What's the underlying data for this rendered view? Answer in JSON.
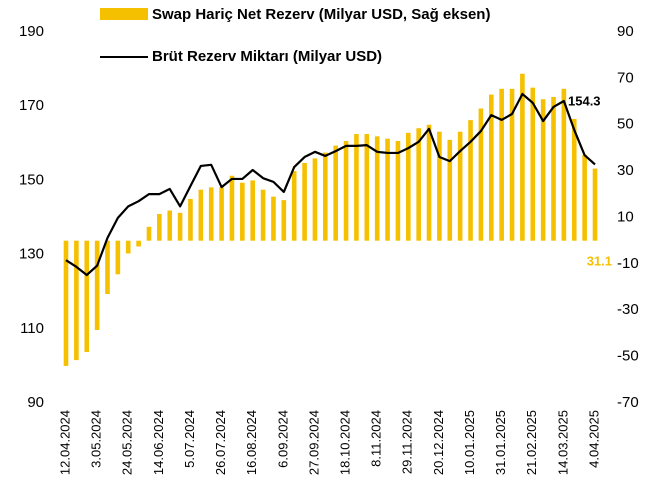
{
  "chart_data": {
    "type": "bar_line",
    "categories": [
      "12.04.2024",
      null,
      null,
      "3.05.2024",
      null,
      null,
      "24.05.2024",
      null,
      null,
      "14.06.2024",
      null,
      null,
      "5.07.2024",
      null,
      null,
      "26.07.2024",
      null,
      null,
      "16.08.2024",
      null,
      null,
      "6.09.2024",
      null,
      null,
      "27.09.2024",
      null,
      null,
      "18.10.2024",
      null,
      null,
      "8.11.2024",
      null,
      null,
      "29.11.2024",
      null,
      null,
      "20.12.2024",
      null,
      null,
      "10.01.2025",
      null,
      null,
      "31.01.2025",
      null,
      null,
      "21.02.2025",
      null,
      null,
      "14.03.2025",
      null,
      null,
      "4.04.2025"
    ],
    "series": [
      {
        "name": "Swap Hariç Net Rezerv (Milyar USD, Sağ eksen)",
        "type": "bar",
        "axis": "y2",
        "color": "#f5c000",
        "values": [
          -54,
          -51.5,
          -48,
          -38.5,
          -23,
          -14.5,
          -5.5,
          -2.5,
          6,
          11.5,
          13,
          12,
          18,
          22,
          23,
          23,
          28,
          25,
          26,
          22,
          19,
          17.5,
          30,
          33.5,
          35.5,
          38,
          41,
          43,
          46,
          46,
          45,
          44,
          43,
          46.5,
          48.5,
          50,
          47,
          43.5,
          47,
          52,
          57,
          63,
          65.5,
          65.5,
          72,
          66,
          61,
          62,
          65.5,
          52.5,
          37,
          31.1
        ]
      },
      {
        "name": "Brüt Rezerv Miktarı (Milyar USD)",
        "type": "line",
        "axis": "y",
        "color": "#000000",
        "values": [
          128.5,
          126.7,
          124.5,
          127,
          134.5,
          139.9,
          143,
          144.4,
          146.3,
          146.3,
          147.7,
          143,
          148.5,
          153.9,
          154.2,
          148.2,
          150.4,
          150.4,
          152.8,
          150.6,
          149.6,
          146.9,
          153.6,
          156.3,
          157.7,
          156.6,
          157.9,
          159.3,
          159.3,
          159.5,
          157.7,
          157.4,
          157.4,
          158.7,
          160.4,
          163.9,
          156.3,
          155.2,
          157.9,
          160.4,
          163.3,
          167.6,
          166.3,
          167.9,
          173.3,
          170.9,
          166,
          169.8,
          171.4,
          163.6,
          156.8,
          154.3
        ]
      }
    ],
    "data_labels": "last",
    "ylim": [
      90,
      190
    ],
    "yticks": [
      90,
      110,
      130,
      150,
      170,
      190
    ],
    "y2lim": [
      -70,
      90
    ],
    "y2ticks": [
      -70,
      -50,
      -30,
      -10,
      10,
      30,
      50,
      70,
      90
    ],
    "grid": false
  }
}
